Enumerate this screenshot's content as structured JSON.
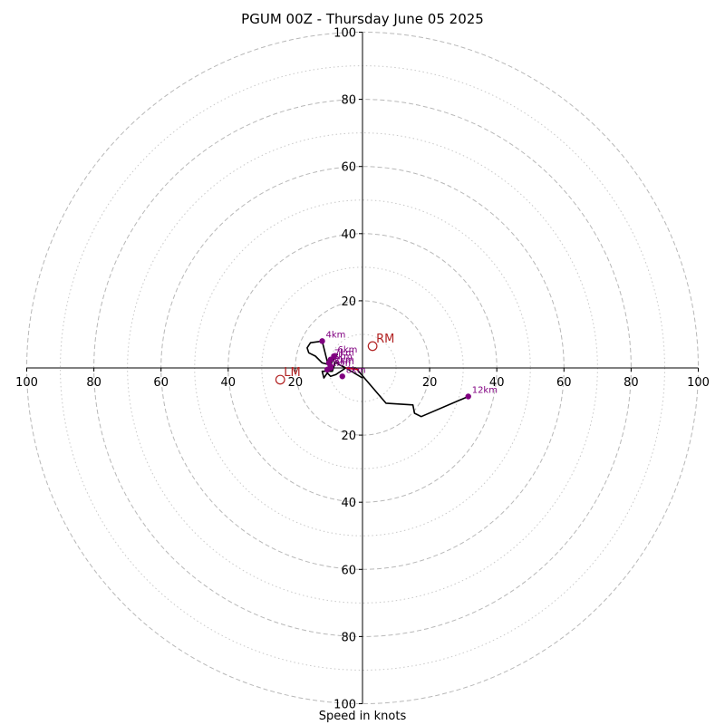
{
  "chart_data": {
    "type": "line",
    "title": "PGUM 00Z - Thursday June 05 2025",
    "xlabel": "Speed in knots",
    "ylabel": "",
    "xlim": [
      -100,
      100
    ],
    "ylim": [
      -100,
      100
    ],
    "rings_dashed": [
      20,
      40,
      60,
      80,
      100
    ],
    "rings_dotted": [
      10,
      30,
      50,
      70,
      90
    ],
    "x_ticks": [
      -100,
      -80,
      -60,
      -40,
      -20,
      20,
      40,
      60,
      80,
      100
    ],
    "x_tick_labels": [
      "100",
      "80",
      "60",
      "40",
      "20",
      "20",
      "40",
      "60",
      "80",
      "100"
    ],
    "y_ticks": [
      100,
      80,
      60,
      40,
      20,
      -20,
      -40,
      -60,
      -80,
      -100
    ],
    "y_tick_labels": [
      "100",
      "80",
      "60",
      "40",
      "20",
      "20",
      "40",
      "60",
      "80",
      "100"
    ],
    "grid": true,
    "hodograph": {
      "color": "#000000",
      "lower_segment_color": "#cc0000",
      "u": [
        0,
        -5,
        -8,
        -9.5,
        -10.5,
        -9,
        -7.5,
        -8.5,
        -10,
        -12,
        -14,
        -16,
        -16.5,
        -15.5,
        -12,
        -10,
        -9.5,
        -11.5,
        -12,
        -9,
        -8,
        -7,
        -5,
        -2,
        1,
        7,
        15,
        15.5,
        17.5,
        31.5
      ],
      "v": [
        -3,
        0,
        -2,
        -2.5,
        -1.5,
        2,
        4,
        2.5,
        1,
        1.5,
        3.5,
        4.5,
        6,
        7.5,
        8,
        0,
        0,
        -3,
        -1,
        -1,
        2,
        1,
        0,
        0,
        -3.5,
        -10.5,
        -11,
        -13.5,
        -14.5,
        -8.5
      ]
    },
    "red_segment": {
      "u": [
        -1,
        -5
      ],
      "v": [
        -0.5,
        0
      ]
    },
    "height_markers": [
      {
        "label": "4km",
        "u": -12,
        "v": 8
      },
      {
        "label": "6km",
        "u": -8.5,
        "v": 3.5
      },
      {
        "label": "7km",
        "u": -9.5,
        "v": 2.5
      },
      {
        "label": "3km",
        "u": -10,
        "v": 1.5
      },
      {
        "label": "2km",
        "u": -9.5,
        "v": 0.5
      },
      {
        "label": "1km",
        "u": -10.5,
        "v": -0.5
      },
      {
        "label": "5km",
        "u": -9.5,
        "v": 0
      },
      {
        "label": "8km",
        "u": -6,
        "v": -2.5
      },
      {
        "label": "12km",
        "u": 31.5,
        "v": -8.5
      }
    ],
    "storm_motion": [
      {
        "label": "RM",
        "u": 3,
        "v": 6.5
      },
      {
        "label": "LM",
        "u": -24.5,
        "v": -3.5
      }
    ],
    "marker_color": "#800080",
    "storm_color": "#b22222"
  }
}
